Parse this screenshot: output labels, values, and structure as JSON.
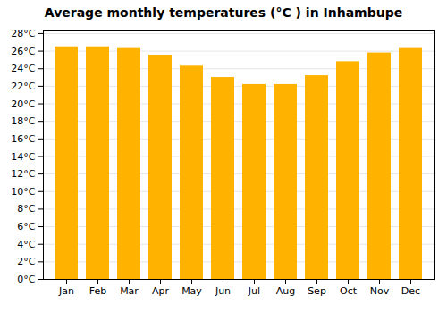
{
  "chart_data": {
    "type": "bar",
    "title": "Average monthly temperatures (°C ) in Inhambupe",
    "categories": [
      "Jan",
      "Feb",
      "Mar",
      "Apr",
      "May",
      "Jun",
      "Jul",
      "Aug",
      "Sep",
      "Oct",
      "Nov",
      "Dec"
    ],
    "values": [
      26.5,
      26.5,
      26.3,
      25.5,
      24.3,
      23.0,
      22.2,
      22.2,
      23.2,
      24.8,
      25.8,
      26.3
    ],
    "color": "#FFB300",
    "ylim": [
      0,
      28.3
    ],
    "yticks": [
      {
        "value": 0,
        "label": "0°C"
      },
      {
        "value": 2,
        "label": "2°C"
      },
      {
        "value": 4,
        "label": "4°C"
      },
      {
        "value": 6,
        "label": "6°C"
      },
      {
        "value": 8,
        "label": "8°C"
      },
      {
        "value": 10,
        "label": "10°C"
      },
      {
        "value": 12,
        "label": "12°C"
      },
      {
        "value": 14,
        "label": "14°C"
      },
      {
        "value": 16,
        "label": "16°C"
      },
      {
        "value": 18,
        "label": "18°C"
      },
      {
        "value": 20,
        "label": "20°C"
      },
      {
        "value": 22,
        "label": "22°C"
      },
      {
        "value": 24,
        "label": "24°C"
      },
      {
        "value": 26,
        "label": "26°C"
      },
      {
        "value": 28,
        "label": "28°C"
      }
    ],
    "grid": true
  }
}
